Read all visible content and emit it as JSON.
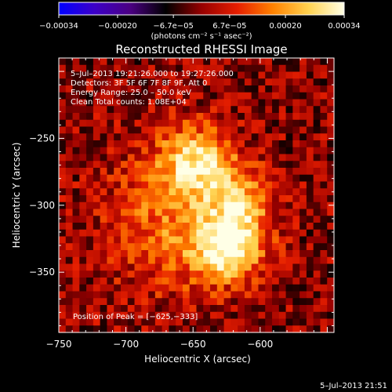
{
  "chart_data": {
    "type": "heatmap",
    "title": "Reconstructed RHESSI Image",
    "xlabel": "Heliocentric X (arcsec)",
    "ylabel": "Heliocentric Y (arcsec)",
    "xlim": [
      -750,
      -545
    ],
    "ylim": [
      -395,
      -190
    ],
    "xticks": [
      -750,
      -700,
      -650,
      -600
    ],
    "xtick_labels": [
      "−750",
      "−700",
      "−650",
      "−600"
    ],
    "yticks": [
      -250,
      -300,
      -350
    ],
    "ytick_labels": [
      "−250",
      "−300",
      "−350"
    ],
    "grid": false,
    "colorbar": {
      "min": -0.00034,
      "max": 0.00034,
      "tick_values": [
        -0.00034,
        -0.0002,
        -6.7e-05,
        6.7e-05,
        0.0002,
        0.00034
      ],
      "tick_labels": [
        "−0.00034",
        "−0.00020",
        "−6.7e−05",
        "6.7e−05",
        "0.00020",
        "0.00034"
      ],
      "unit_label": "(photons cm⁻² s⁻¹ asec⁻²)",
      "colormap": [
        "#0000ff",
        "#3c00c8",
        "#4b0082",
        "#000000",
        "#960000",
        "#e61e00",
        "#ff8200",
        "#ffd250",
        "#ffffe6"
      ]
    },
    "annotations": [
      "5–Jul–2013 19:21:26.000 to 19:27:26.000",
      "Detectors: 3F 5F 6F 7F 8F 9F, Att 0",
      "Energy Range: 25.0 – 50.0 keV",
      "Clean     Total counts: 1.08E+04"
    ],
    "peak_label": "Position of Peak = [−625,−333]",
    "peak": [
      -625,
      -333
    ],
    "source_components": [
      {
        "x": -648,
        "y": -268,
        "sx": 18,
        "sy": 18,
        "amp": 0.00024
      },
      {
        "x": -625,
        "y": -333,
        "sx": 18,
        "sy": 16,
        "amp": 0.00029
      },
      {
        "x": -615,
        "y": -300,
        "sx": 15,
        "sy": 18,
        "amp": 0.00021
      },
      {
        "x": -662,
        "y": -310,
        "sx": 35,
        "sy": 38,
        "amp": 0.00016
      }
    ],
    "footer_timestamp": "5–Jul–2013 21:51"
  }
}
